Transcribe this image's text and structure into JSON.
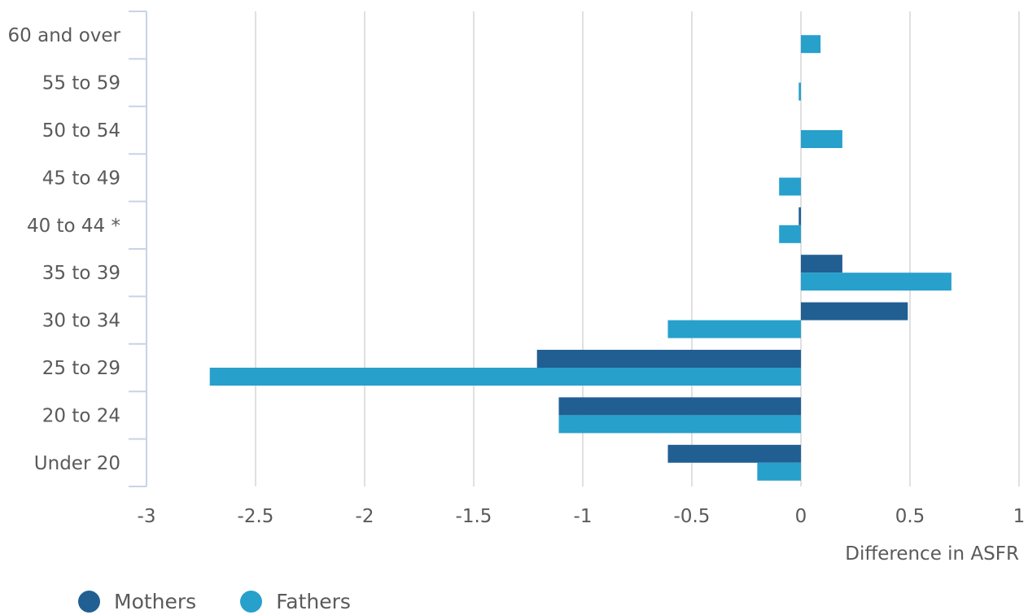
{
  "chart_data": {
    "type": "bar",
    "orientation": "horizontal",
    "categories": [
      "60 and over",
      "55 to 59",
      "50 to 54",
      "45 to 49",
      "40 to 44 *",
      "35 to 39",
      "30 to 34",
      "25 to 29",
      "20 to 24",
      "Under 20"
    ],
    "series": [
      {
        "name": "Mothers",
        "color": "#215f93",
        "values": [
          null,
          null,
          null,
          null,
          -0.01,
          0.19,
          0.49,
          -1.21,
          -1.11,
          -0.61
        ]
      },
      {
        "name": "Fathers",
        "color": "#27a0cc",
        "values": [
          0.09,
          -0.01,
          0.19,
          -0.1,
          -0.1,
          0.69,
          -0.61,
          -2.71,
          -1.11,
          -0.2
        ]
      }
    ],
    "xlabel": "Difference in ASFR",
    "xlim": [
      -3,
      1
    ],
    "xticks": [
      -3,
      -2.5,
      -2,
      -1.5,
      -1,
      -0.5,
      0,
      0.5,
      1
    ],
    "xtick_labels": [
      "-3",
      "-2.5",
      "-2",
      "-1.5",
      "-1",
      "-0.5",
      "0",
      "0.5",
      "1"
    ],
    "grid": "vertical",
    "legend_position": "bottom-left"
  },
  "legend": {
    "mothers_label": "Mothers",
    "fathers_label": "Fathers"
  },
  "colors": {
    "mothers": "#215f93",
    "fathers": "#27a0cc",
    "grid": "#e0e0e0",
    "axis": "#c8d3e6",
    "text": "#5a5a5a"
  }
}
